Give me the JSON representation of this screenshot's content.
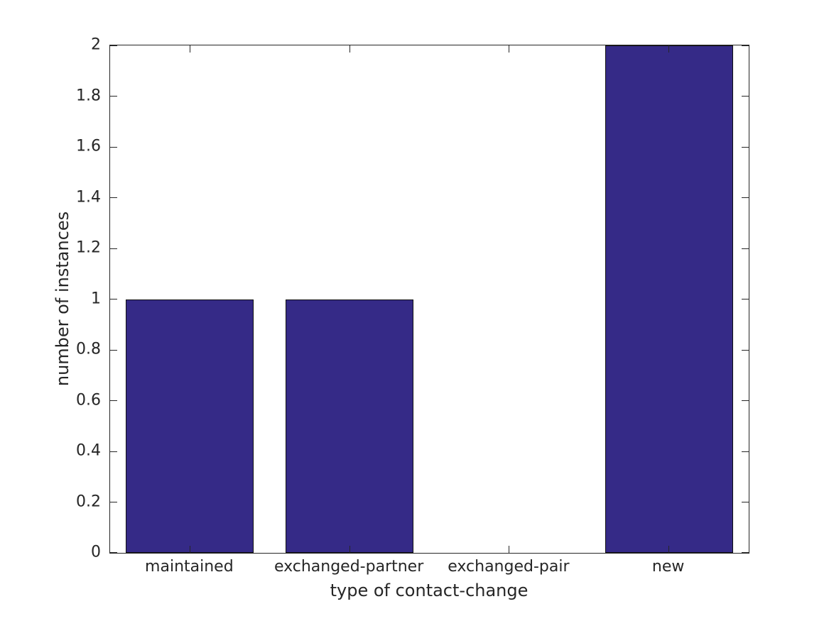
{
  "chart_data": {
    "type": "bar",
    "title": "",
    "categories": [
      "maintained",
      "exchanged-partner",
      "exchanged-pair",
      "new"
    ],
    "values": [
      1,
      1,
      0,
      2
    ],
    "xlabel": "type of contact-change",
    "ylabel": "number of instances",
    "ylim": [
      0,
      2
    ],
    "yticks": [
      0,
      0.2,
      0.4,
      0.6,
      0.8,
      1,
      1.2,
      1.4,
      1.6,
      1.8,
      2
    ],
    "ytick_labels": [
      "0",
      "0.2",
      "0.4",
      "0.6",
      "0.8",
      "1",
      "1.2",
      "1.4",
      "1.6",
      "1.8",
      "2"
    ],
    "bar_width_fraction": 0.8,
    "grid": false,
    "tick_direction": "in",
    "box": true,
    "colors": {
      "bar_fill": "#352a87",
      "bar_edge": "#101010",
      "axis": "#262626",
      "text": "#262626",
      "background": "#ffffff"
    }
  }
}
